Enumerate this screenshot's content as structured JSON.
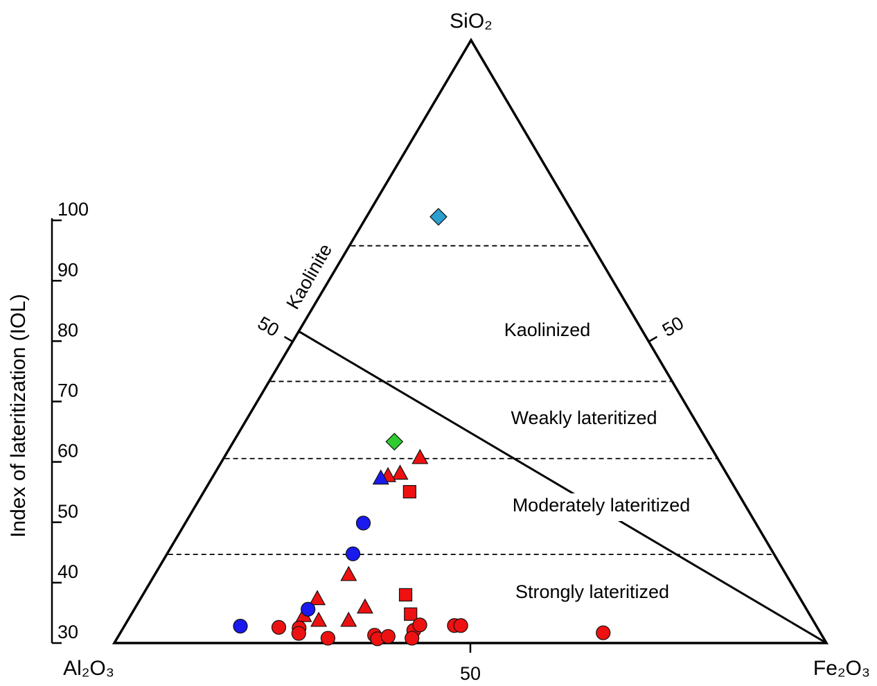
{
  "chart_data": {
    "type": "ternary",
    "vertices": {
      "top": "SiO₂",
      "left": "Al₂O₃",
      "right": "Fe₂O₃"
    },
    "left_edge_ticks": [
      50
    ],
    "right_edge_ticks": [
      50
    ],
    "bottom_ticks": [
      50
    ],
    "iol_axis": {
      "label": "Index of lateritization (IOL)",
      "ylim": [
        30,
        100
      ],
      "yticks": [
        30,
        40,
        50,
        60,
        70,
        80,
        90,
        100
      ]
    },
    "zone_boundaries": [
      65.9,
      43.4,
      30.6,
      14.7
    ],
    "zones": [
      "Kaolinized",
      "Weakly lateritized",
      "Moderately lateritized",
      "Strongly lateritized"
    ],
    "kaolinite": {
      "label": "Kaolinite",
      "SiO2": 51.7
    },
    "series": [
      {
        "marker": "diamond",
        "color": "#2a9fd0",
        "SiO2": [
          70.7
        ],
        "Fe2O3": [
          10.1
        ]
      },
      {
        "marker": "diamond",
        "color": "#2ecc2e",
        "SiO2": [
          33.4
        ],
        "Fe2O3": [
          22.6
        ]
      },
      {
        "marker": "triangle",
        "color": "#ee1111",
        "SiO2": [
          30.8,
          28.2,
          27.8,
          11.4,
          7.4,
          4.6,
          3.8,
          3.8,
          6.0
        ],
        "Fe2O3": [
          27.5,
          26.0,
          24.5,
          27.2,
          24.8,
          24.3,
          26.8,
          31.0,
          32.2
        ]
      },
      {
        "marker": "triangle",
        "color": "#1a1aee",
        "SiO2": [
          27.4
        ],
        "Fe2O3": [
          23.7
        ]
      },
      {
        "marker": "square",
        "color": "#ee1111",
        "SiO2": [
          25.1,
          8.0,
          4.8
        ],
        "Fe2O3": [
          28.9,
          36.9,
          39.2
        ]
      },
      {
        "marker": "circle",
        "color": "#1a1aee",
        "SiO2": [
          19.9,
          14.8,
          5.6,
          2.8
        ],
        "Fe2O3": [
          25.0,
          26.1,
          24.4,
          16.3
        ]
      },
      {
        "marker": "circle",
        "color": "#ee1111",
        "SiO2": [
          2.6,
          2.5,
          1.6,
          0.8,
          1.3,
          0.7,
          1.1,
          2.1,
          3.0,
          0.8,
          2.9,
          2.9,
          1.7
        ],
        "Fe2O3": [
          21.8,
          24.7,
          25.1,
          29.6,
          35.9,
          36.6,
          37.9,
          41.0,
          41.4,
          41.4,
          46.3,
          47.2,
          67.8
        ]
      }
    ]
  }
}
